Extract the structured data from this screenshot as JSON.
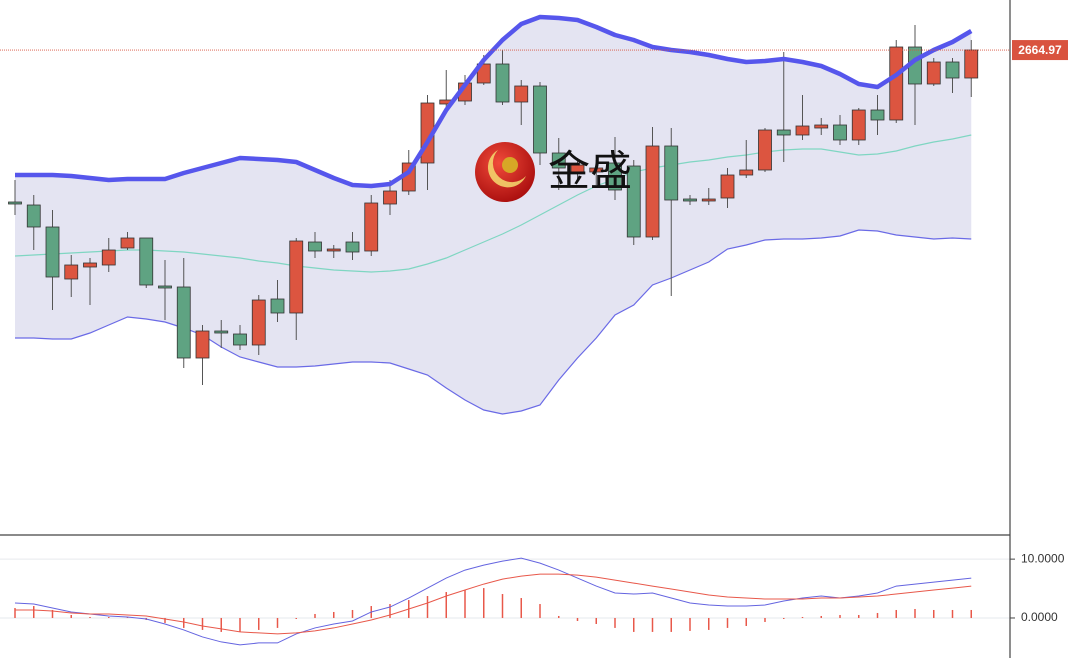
{
  "watermark": "金盛",
  "chart_data": [
    {
      "type": "candlestick",
      "categories": [
        null,
        null,
        null,
        null,
        null,
        null,
        null,
        null,
        null,
        null,
        null,
        null,
        null,
        null,
        null,
        null,
        null,
        null,
        null,
        null,
        null,
        null,
        null,
        null,
        null,
        null,
        null,
        null,
        null,
        null,
        null,
        null,
        null,
        null,
        null,
        null,
        null,
        null,
        null,
        null,
        null,
        null,
        null,
        null,
        null,
        null,
        null,
        null,
        null,
        null,
        null,
        null
      ],
      "open": [
        2589,
        2587.5,
        2576.5,
        2550.5,
        2556.5,
        2557.5,
        2566,
        2571,
        2547,
        2546.5,
        2511,
        2524.5,
        2523,
        2517.5,
        2540.5,
        2533.5,
        2569,
        2564.5,
        2569,
        2564.5,
        2588,
        2594.5,
        2608.5,
        2638,
        2639.5,
        2648.5,
        2658,
        2639,
        2647,
        2613.5,
        2604,
        2604,
        2608.5,
        2607,
        2571.5,
        2617,
        2590.5,
        2589.5,
        2591,
        2602.5,
        2605,
        2625,
        2622.5,
        2626,
        2627.5,
        2620,
        2635,
        2630,
        2666.5,
        2648,
        2659,
        2651
      ],
      "high": [
        2600,
        2592.5,
        2585,
        2562.5,
        2561,
        2571,
        2574,
        2571,
        2560,
        2561,
        2527.5,
        2530,
        2527.5,
        2542.5,
        2550,
        2571,
        2574,
        2567.5,
        2574,
        2592.5,
        2600,
        2615,
        2642.5,
        2655,
        2652.5,
        2662.5,
        2665,
        2650,
        2649,
        2621,
        2611,
        2610,
        2621.5,
        2610,
        2626.5,
        2626,
        2592.5,
        2596,
        2606,
        2620,
        2626,
        2664,
        2642.5,
        2631,
        2632.5,
        2636,
        2642.5,
        2670,
        2677.5,
        2661,
        2661,
        2670
      ],
      "low": [
        2582.5,
        2565,
        2535,
        2541.5,
        2537.5,
        2554,
        2565,
        2546,
        2530,
        2506,
        2497.5,
        2516,
        2515,
        2512.5,
        2529,
        2520,
        2561,
        2561,
        2560,
        2562,
        2582.5,
        2592.5,
        2595,
        2635,
        2637.5,
        2647.5,
        2637.5,
        2627.5,
        2607.5,
        2595,
        2600,
        2597.5,
        2590,
        2567.5,
        2570,
        2542,
        2587.5,
        2587.5,
        2586,
        2601,
        2604,
        2609,
        2620,
        2622.5,
        2617.5,
        2617.5,
        2622.5,
        2628.5,
        2627.5,
        2647,
        2643.5,
        2641.5
      ],
      "close": [
        2588,
        2576.5,
        2551.5,
        2557.5,
        2558.5,
        2565,
        2571,
        2547.5,
        2546,
        2511,
        2524.5,
        2523.5,
        2517.5,
        2540,
        2533.5,
        2569.5,
        2564.5,
        2565.5,
        2564,
        2588.5,
        2594.5,
        2608.5,
        2638.5,
        2640,
        2648.5,
        2658,
        2639,
        2647,
        2613.5,
        2606,
        2607.5,
        2606,
        2595,
        2571.5,
        2617,
        2590,
        2589.5,
        2590.5,
        2602.5,
        2605,
        2625,
        2622.5,
        2627,
        2627.5,
        2620,
        2635,
        2630,
        2666.5,
        2648,
        2659,
        2651,
        2665
      ],
      "up_color": "#dc5540",
      "down_color": "#5fa382",
      "band_fill": "#e4e4f2",
      "upper": {
        "color": "#5656ec",
        "values": [
          2602.5,
          2602.5,
          2602.5,
          2602,
          2601,
          2600,
          2600.5,
          2600.5,
          2600.5,
          2603.5,
          2606,
          2608.5,
          2611,
          2610.5,
          2610,
          2609,
          2605,
          2601,
          2597.5,
          2597,
          2598,
          2604,
          2619,
          2635,
          2647.5,
          2660,
          2670,
          2678,
          2681.5,
          2681,
          2680,
          2676.5,
          2672.5,
          2670,
          2666.5,
          2665,
          2664,
          2662.5,
          2660.5,
          2659,
          2659.5,
          2660.5,
          2659,
          2657,
          2653,
          2648,
          2646.5,
          2652.5,
          2660,
          2665,
          2669,
          2674.5
        ]
      },
      "middle": {
        "color": "#7fd6c2",
        "values": [
          2562,
          2562.5,
          2563,
          2563.5,
          2564,
          2564.5,
          2565,
          2565,
          2564.5,
          2564,
          2563,
          2562,
          2561,
          2559.5,
          2558.5,
          2557,
          2556,
          2555,
          2554.5,
          2554,
          2554.5,
          2555.5,
          2558,
          2561,
          2565,
          2569,
          2573,
          2577.5,
          2582.5,
          2587.5,
          2592.5,
          2597,
          2600.5,
          2604,
          2606,
          2607.5,
          2609,
          2610,
          2611.5,
          2612.5,
          2614,
          2615,
          2615.5,
          2615.5,
          2614,
          2612.5,
          2613,
          2614.5,
          2617,
          2619,
          2620.5,
          2622.5
        ]
      },
      "lower": {
        "color": "#6a6ae6",
        "values": [
          2521,
          2521,
          2520.5,
          2520.5,
          2523.5,
          2527.5,
          2531.5,
          2530.5,
          2529,
          2526,
          2522.5,
          2516.5,
          2511.5,
          2509,
          2506.5,
          2506.5,
          2507,
          2508,
          2509,
          2509,
          2508.5,
          2505.5,
          2502.5,
          2496,
          2490,
          2485,
          2483,
          2484.5,
          2487.5,
          2500,
          2511,
          2521,
          2532.5,
          2537.5,
          2547.5,
          2551,
          2555,
          2559,
          2565.5,
          2567.5,
          2570,
          2570.5,
          2570.5,
          2571,
          2572,
          2575,
          2574.5,
          2572.5,
          2571.5,
          2570.5,
          2571,
          2570.5
        ]
      },
      "last_price": 2664.97,
      "last_price_color": "#d9533f",
      "ylim": [
        2422.5,
        2690
      ]
    },
    {
      "type": "line",
      "categories": [
        null,
        null,
        null,
        null,
        null,
        null,
        null,
        null,
        null,
        null,
        null,
        null,
        null,
        null,
        null,
        null,
        null,
        null,
        null,
        null,
        null,
        null,
        null,
        null,
        null,
        null,
        null,
        null,
        null,
        null,
        null,
        null,
        null,
        null,
        null,
        null,
        null,
        null,
        null,
        null,
        null,
        null,
        null,
        null,
        null,
        null,
        null,
        null,
        null,
        null,
        null,
        null
      ],
      "series": [
        {
          "color": "#6464e0",
          "values": [
            2.54,
            2.37,
            1.69,
            1.02,
            0.68,
            0.34,
            0.17,
            -0.17,
            -1.02,
            -2.03,
            -3.22,
            -4.07,
            -4.58,
            -4.24,
            -4.24,
            -2.71,
            -1.69,
            -1.02,
            -0.51,
            1.02,
            1.86,
            3.39,
            5.08,
            6.78,
            8.14,
            8.98,
            9.66,
            10.17,
            9.32,
            8.14,
            6.78,
            5.42,
            4.24,
            4.07,
            4.24,
            3.39,
            2.54,
            2.2,
            2.03,
            2.03,
            2.2,
            2.88,
            3.39,
            3.73,
            3.39,
            3.73,
            4.24,
            5.42,
            5.76,
            6.1,
            6.44,
            6.78
          ]
        },
        {
          "color": "#e8584a",
          "values": [
            1.36,
            1.36,
            1.19,
            0.85,
            0.68,
            0.68,
            0.51,
            0.34,
            -0.17,
            -0.68,
            -1.36,
            -1.86,
            -2.37,
            -2.54,
            -2.71,
            -2.54,
            -2.2,
            -1.69,
            -1.02,
            -0.34,
            0.51,
            1.53,
            2.54,
            3.73,
            4.75,
            5.76,
            6.61,
            7.12,
            7.46,
            7.46,
            7.29,
            6.95,
            6.44,
            5.93,
            5.42,
            4.92,
            4.41,
            3.9,
            3.56,
            3.39,
            3.22,
            3.22,
            3.22,
            3.39,
            3.39,
            3.56,
            3.73,
            4.07,
            4.41,
            4.75,
            5.08,
            5.42
          ]
        }
      ],
      "histogram": {
        "color": "#e8584a",
        "values": [
          1.69,
          2.03,
          1.36,
          0.51,
          0.17,
          0.17,
          0.17,
          -0.34,
          -0.85,
          -1.69,
          -2.03,
          -2.37,
          -2.37,
          -2.03,
          -1.69,
          -0.17,
          0.68,
          1.02,
          1.36,
          2.03,
          2.37,
          3.05,
          3.73,
          4.41,
          4.75,
          5.08,
          4.07,
          3.39,
          2.37,
          0.34,
          -0.51,
          -1.02,
          -1.69,
          -2.37,
          -2.37,
          -2.37,
          -2.2,
          -2.03,
          -1.69,
          -1.36,
          -0.68,
          -0.17,
          0.17,
          0.34,
          0.51,
          0.51,
          0.85,
          1.36,
          1.53,
          1.36,
          1.36,
          1.36
        ]
      },
      "ylim": [
        -6.8,
        14.1
      ],
      "yticks": [
        {
          "value": 10,
          "label": "10.0000"
        },
        {
          "value": 0,
          "label": "0.0000"
        }
      ],
      "grid": true
    }
  ]
}
